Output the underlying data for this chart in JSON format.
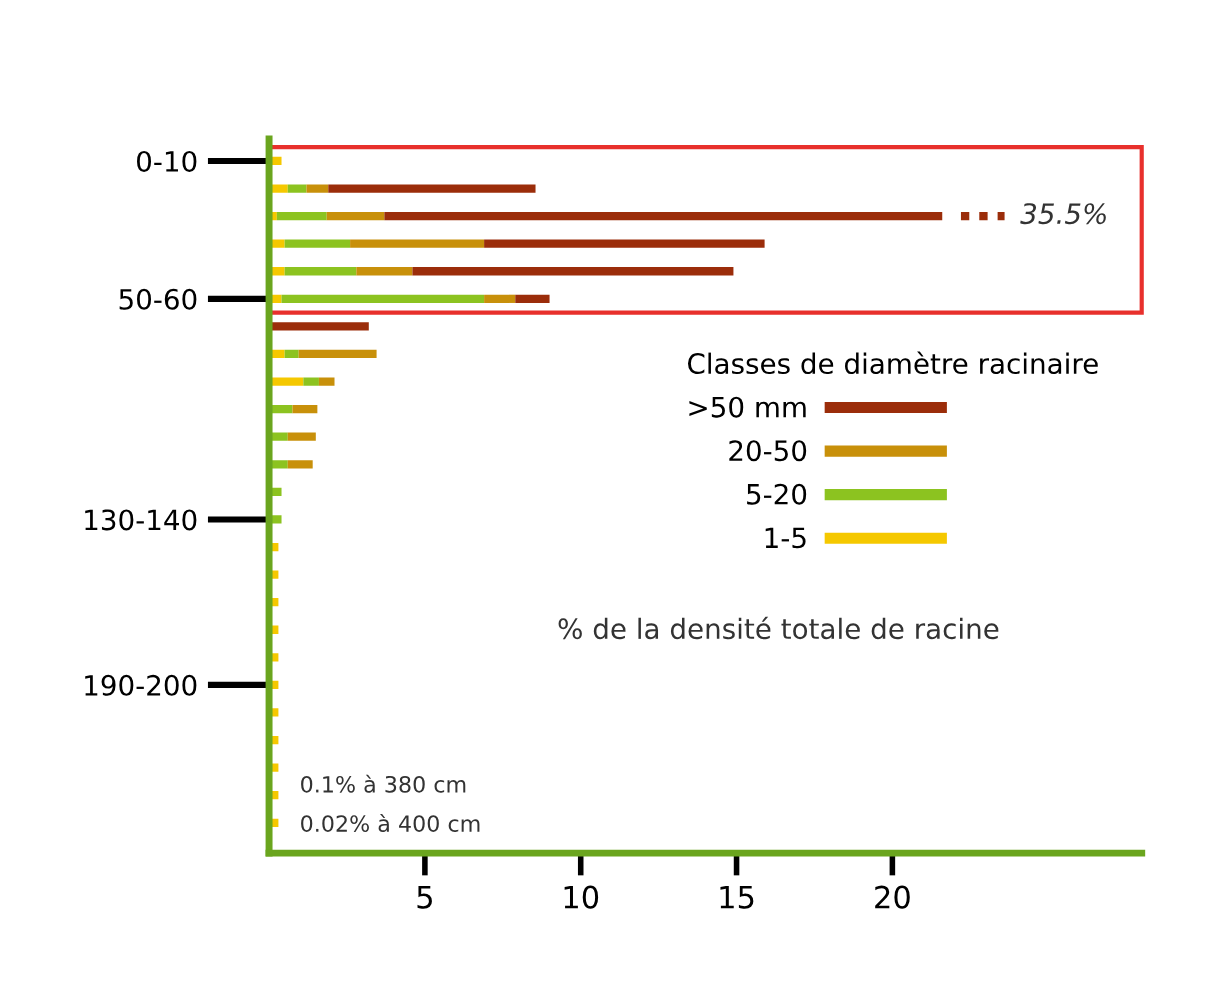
{
  "chart_data": {
    "type": "bar",
    "orientation": "horizontal",
    "stacked": true,
    "categories": [
      "0-10",
      null,
      null,
      null,
      null,
      "50-60",
      null,
      null,
      null,
      null,
      null,
      null,
      null,
      "130-140",
      null,
      null,
      null,
      null,
      null,
      "190-200",
      null,
      null,
      null,
      null,
      null
    ],
    "series": [
      {
        "name": "1-5",
        "color": "#f5c800",
        "values": [
          0.4,
          0.6,
          0.25,
          0.5,
          0.5,
          0.4,
          0,
          0.5,
          1.1,
          0,
          0,
          0,
          0,
          0,
          0.3,
          0.3,
          0.3,
          0.3,
          0.3,
          0.3,
          0.3,
          0.3,
          0.3,
          0.3,
          0.3
        ]
      },
      {
        "name": "5-20",
        "color": "#8cc320",
        "values": [
          0,
          0.6,
          1.6,
          2.1,
          2.3,
          6.5,
          0,
          0.45,
          0.5,
          0.75,
          0.6,
          0.6,
          0.4,
          0.4,
          0,
          0,
          0,
          0,
          0,
          0,
          0,
          0,
          0,
          0,
          0
        ]
      },
      {
        "name": "20-50",
        "color": "#c8900a",
        "values": [
          0,
          0.7,
          1.85,
          4.3,
          1.8,
          1.0,
          0,
          2.5,
          0.5,
          0.8,
          0.9,
          0.8,
          0,
          0,
          0,
          0,
          0,
          0,
          0,
          0,
          0,
          0,
          0,
          0,
          0
        ]
      },
      {
        "name": ">50 mm",
        "color": "#9b2d0a",
        "values": [
          0,
          6.65,
          17.9,
          9.0,
          10.3,
          1.1,
          3.2,
          0,
          0,
          0,
          0,
          0,
          0,
          0,
          0,
          0,
          0,
          0,
          0,
          0,
          0,
          0,
          0,
          0,
          0
        ]
      }
    ],
    "xlim": [
      0,
      28
    ],
    "xticks": [
      5,
      10,
      15,
      20
    ],
    "xlabel": "% de la densité totale de racine",
    "legend_title": "Classes de diamètre racinaire",
    "legend": "right",
    "annotations": [
      "35.5%",
      "0.1% à 380 cm",
      "0.02% à 400 cm"
    ]
  }
}
